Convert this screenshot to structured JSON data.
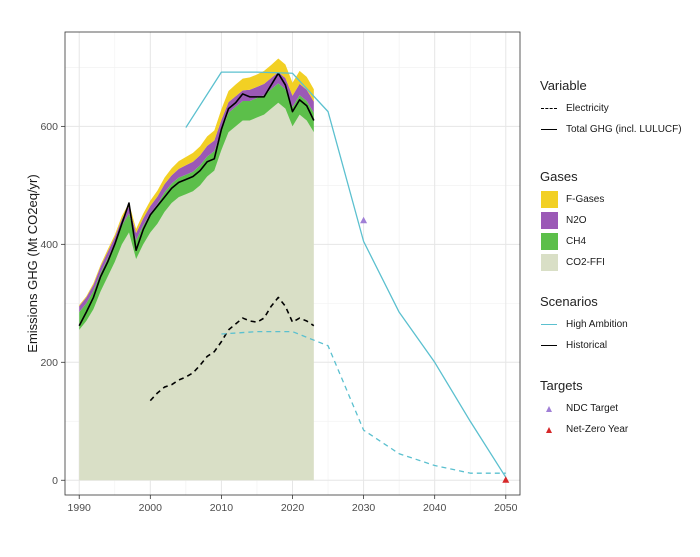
{
  "chart_data": {
    "type": "area",
    "title": "",
    "xlabel": "",
    "ylabel": "Emissions GHG (Mt CO2eq/yr)",
    "xlim": [
      1988,
      2052
    ],
    "ylim": [
      -25,
      760
    ],
    "x_ticks": [
      1990,
      2000,
      2010,
      2020,
      2030,
      2040,
      2050
    ],
    "y_ticks": [
      0,
      200,
      400,
      600
    ],
    "grid": true,
    "legend_position": "right",
    "historical_x": [
      1990,
      1991,
      1992,
      1993,
      1994,
      1995,
      1996,
      1997,
      1998,
      1999,
      2000,
      2001,
      2002,
      2003,
      2004,
      2005,
      2006,
      2007,
      2008,
      2009,
      2010,
      2011,
      2012,
      2013,
      2014,
      2015,
      2016,
      2017,
      2018,
      2019,
      2020,
      2021,
      2022,
      2023
    ],
    "stacked_series": [
      {
        "name": "CO2-FFI",
        "color": "#d9dfc6",
        "values": [
          255,
          270,
          290,
          320,
          345,
          370,
          400,
          420,
          375,
          400,
          420,
          435,
          455,
          470,
          480,
          485,
          490,
          500,
          515,
          525,
          560,
          590,
          600,
          610,
          610,
          615,
          620,
          630,
          640,
          630,
          600,
          620,
          610,
          590
        ]
      },
      {
        "name": "CH4",
        "color": "#5cbf4a",
        "values": [
          30,
          30,
          31,
          31,
          31,
          31,
          32,
          32,
          32,
          32,
          32,
          33,
          33,
          33,
          33,
          33,
          33,
          34,
          34,
          33,
          33,
          33,
          33,
          33,
          33,
          33,
          33,
          33,
          33,
          33,
          33,
          33,
          33,
          33
        ]
      },
      {
        "name": "N2O",
        "color": "#9b59b6",
        "values": [
          10,
          10,
          10,
          11,
          11,
          11,
          11,
          12,
          12,
          12,
          13,
          13,
          14,
          14,
          15,
          16,
          17,
          17,
          18,
          18,
          18,
          18,
          18,
          18,
          19,
          19,
          19,
          19,
          19,
          19,
          19,
          19,
          19,
          19
        ]
      },
      {
        "name": "F-Gases",
        "color": "#f2d024",
        "values": [
          2,
          2,
          3,
          3,
          4,
          4,
          5,
          6,
          7,
          8,
          9,
          10,
          11,
          12,
          13,
          14,
          15,
          15,
          16,
          17,
          18,
          19,
          20,
          20,
          21,
          21,
          22,
          22,
          23,
          23,
          22,
          22,
          22,
          21
        ]
      }
    ],
    "lines": [
      {
        "name": "Total GHG (incl. LULUCF)",
        "scenario": "Historical",
        "variable": "Total GHG (incl. LULUCF)",
        "color": "#000000",
        "dash": false,
        "x": [
          1990,
          1991,
          1992,
          1993,
          1994,
          1995,
          1996,
          1997,
          1998,
          1999,
          2000,
          2001,
          2002,
          2003,
          2004,
          2005,
          2006,
          2007,
          2008,
          2009,
          2010,
          2011,
          2012,
          2013,
          2014,
          2015,
          2016,
          2017,
          2018,
          2019,
          2020,
          2021,
          2022,
          2023
        ],
        "y": [
          262,
          285,
          310,
          345,
          370,
          400,
          435,
          470,
          390,
          425,
          450,
          465,
          480,
          495,
          505,
          510,
          515,
          525,
          540,
          545,
          595,
          630,
          640,
          655,
          650,
          650,
          650,
          670,
          690,
          670,
          625,
          645,
          635,
          610
        ]
      },
      {
        "name": "Electricity",
        "scenario": "Historical",
        "variable": "Electricity",
        "color": "#000000",
        "dash": true,
        "x": [
          2000,
          2001,
          2002,
          2003,
          2004,
          2005,
          2006,
          2007,
          2008,
          2009,
          2010,
          2011,
          2012,
          2013,
          2014,
          2015,
          2016,
          2017,
          2018,
          2019,
          2020,
          2021,
          2022,
          2023
        ],
        "y": [
          135,
          148,
          158,
          162,
          170,
          175,
          182,
          195,
          210,
          218,
          235,
          255,
          265,
          275,
          270,
          268,
          275,
          295,
          310,
          295,
          268,
          275,
          270,
          262
        ]
      },
      {
        "name": "Total GHG (incl. LULUCF)",
        "scenario": "High Ambition",
        "variable": "Total GHG (incl. LULUCF)",
        "color": "#5bc0cf",
        "dash": false,
        "x": [
          2005,
          2010,
          2015,
          2020,
          2025,
          2030,
          2035,
          2040,
          2045,
          2050
        ],
        "y": [
          598,
          692,
          692,
          690,
          625,
          405,
          285,
          200,
          100,
          5
        ]
      },
      {
        "name": "Electricity",
        "scenario": "High Ambition",
        "variable": "Electricity",
        "color": "#5bc0cf",
        "dash": true,
        "x": [
          2010,
          2015,
          2020,
          2025,
          2030,
          2035,
          2040,
          2045,
          2050
        ],
        "y": [
          248,
          252,
          252,
          228,
          85,
          45,
          25,
          12,
          12
        ]
      }
    ],
    "markers": [
      {
        "name": "NDC Target",
        "x": 2030,
        "y": 440,
        "color": "#a07fd6",
        "shape": "triangle"
      },
      {
        "name": "Net-Zero Year",
        "x": 2050,
        "y": 0,
        "color": "#d62728",
        "shape": "triangle"
      }
    ]
  },
  "legend": {
    "variable": {
      "title": "Variable",
      "items": [
        {
          "label": "Electricity",
          "style": "dashed"
        },
        {
          "label": "Total GHG (incl. LULUCF)",
          "style": "solid"
        }
      ]
    },
    "gases": {
      "title": "Gases",
      "items": [
        {
          "label": "F-Gases",
          "color": "#f2d024"
        },
        {
          "label": "N2O",
          "color": "#9b59b6"
        },
        {
          "label": "CH4",
          "color": "#5cbf4a"
        },
        {
          "label": "CO2-FFI",
          "color": "#d9dfc6"
        }
      ]
    },
    "scenarios": {
      "title": "Scenarios",
      "items": [
        {
          "label": "High Ambition",
          "color": "#5bc0cf"
        },
        {
          "label": "Historical",
          "color": "#000000"
        }
      ]
    },
    "targets": {
      "title": "Targets",
      "items": [
        {
          "label": "NDC Target",
          "color": "#a07fd6"
        },
        {
          "label": "Net-Zero Year",
          "color": "#d62728"
        }
      ]
    }
  }
}
